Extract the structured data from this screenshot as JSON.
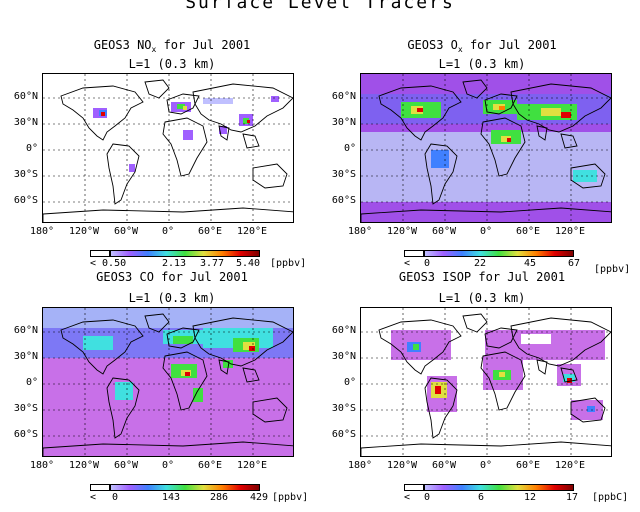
{
  "title": "Surface Level Tracers",
  "panels": [
    {
      "id": "nox",
      "species_prefix": "GEOS3 NO",
      "species_sub": "x",
      "species_suffix": " for Jul 2001",
      "level": "L=1 (0.3 km)",
      "colorbar": {
        "under": "< 0.50",
        "ticks": [
          "2.13",
          "3.77",
          "5.40"
        ],
        "unit": "[ppbv]"
      },
      "fill": "white"
    },
    {
      "id": "ox",
      "species_prefix": "GEOS3 O",
      "species_sub": "x",
      "species_suffix": " for Jul 2001",
      "level": "L=1 (0.3 km)",
      "colorbar": {
        "under": "<",
        "ticks": [
          "0",
          "22",
          "45",
          "67"
        ],
        "unit": "[ppbv]"
      },
      "fill": "violet"
    },
    {
      "id": "co",
      "species_prefix": "GEOS3 CO for Jul 2001",
      "species_sub": "",
      "species_suffix": "",
      "level": "L=1 (0.3 km)",
      "colorbar": {
        "under": "<",
        "ticks": [
          "0",
          "143",
          "286",
          "429"
        ],
        "unit": "[ppbv]"
      },
      "fill": "magenta"
    },
    {
      "id": "isop",
      "species_prefix": "GEOS3 ISOP for Jul 2001",
      "species_sub": "",
      "species_suffix": "",
      "level": "L=1 (0.3 km)",
      "colorbar": {
        "under": "<",
        "ticks": [
          "0",
          "6",
          "12",
          "17"
        ],
        "unit": "[ppbC]"
      },
      "fill": "white"
    }
  ],
  "lat_labels": [
    "60°N",
    "30°N",
    "0°",
    "30°S",
    "60°S"
  ],
  "lon_labels": [
    "180°",
    "120°W",
    "60°W",
    "0°",
    "60°E",
    "120°E"
  ],
  "colors": {
    "violet": "#a050e8",
    "magenta": "#c870e8",
    "ocean_light": "#c0d8f8",
    "hot": "#e01010",
    "mid": "#20e040"
  }
}
